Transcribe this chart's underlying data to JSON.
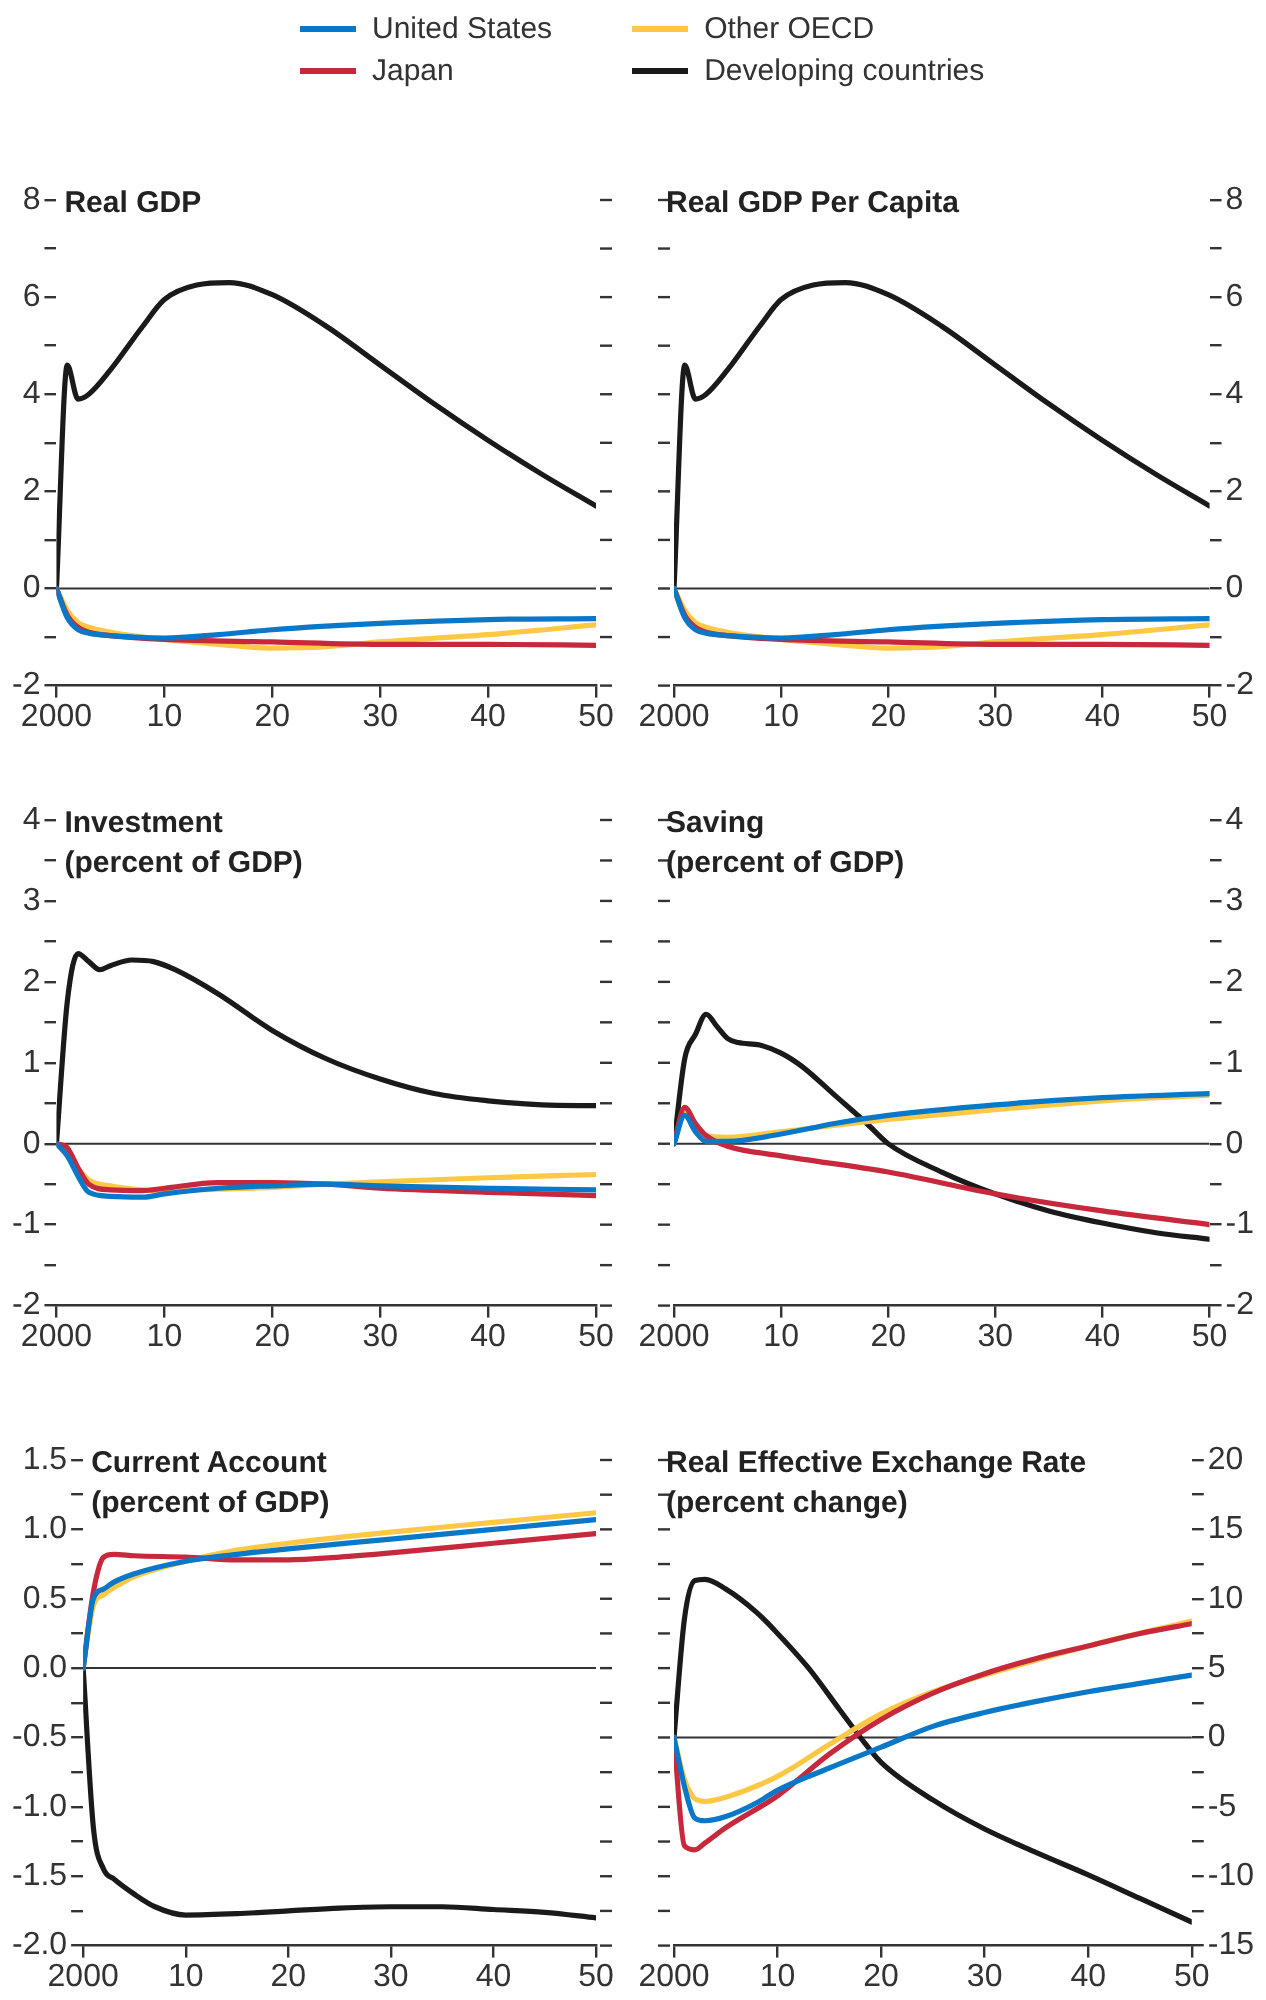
{
  "chart_data": [
    {
      "type": "line",
      "title": "Real GDP",
      "legend": "top",
      "xlim": [
        2000,
        2050
      ],
      "xticks": [
        {
          "value": 2000,
          "label": "2000"
        },
        {
          "value": 2010,
          "label": "10"
        },
        {
          "value": 2020,
          "label": "20"
        },
        {
          "value": 2030,
          "label": "30"
        },
        {
          "value": 2040,
          "label": "40"
        },
        {
          "value": 2050,
          "label": "50"
        }
      ],
      "ylim": [
        -2,
        8
      ],
      "yticks": [
        -2,
        {
          "value": -1,
          "label": null
        },
        0,
        {
          "value": 1,
          "label": null
        },
        2,
        {
          "value": 3,
          "label": null
        },
        4,
        {
          "value": 5,
          "label": null
        },
        6,
        {
          "value": 7,
          "label": null
        },
        8
      ],
      "ref_lines": [
        {
          "axis": "y",
          "value": 0
        }
      ],
      "series": [
        {
          "name": "United States",
          "color": "#0a78c8",
          "x": [
            2000,
            2001,
            2002,
            2003,
            2005,
            2010,
            2015,
            2020,
            2030,
            2040,
            2050
          ],
          "values": [
            0,
            -0.6,
            -0.85,
            -0.92,
            -0.97,
            -1.02,
            -0.95,
            -0.85,
            -0.72,
            -0.64,
            -0.62
          ]
        },
        {
          "name": "Japan",
          "color": "#c8283c",
          "x": [
            2000,
            2001,
            2002,
            2003,
            2005,
            2010,
            2020,
            2030,
            2040,
            2050
          ],
          "values": [
            0,
            -0.55,
            -0.8,
            -0.9,
            -0.97,
            -1.05,
            -1.1,
            -1.15,
            -1.15,
            -1.17
          ]
        },
        {
          "name": "Other OECD",
          "color": "#ffc844",
          "x": [
            2000,
            2001,
            2002,
            2003,
            2005,
            2010,
            2015,
            2020,
            2025,
            2030,
            2040,
            2050
          ],
          "values": [
            0,
            -0.45,
            -0.7,
            -0.8,
            -0.9,
            -1.05,
            -1.15,
            -1.23,
            -1.2,
            -1.1,
            -0.95,
            -0.75
          ]
        },
        {
          "name": "Developing countries",
          "color": "#1a1a1a",
          "x": [
            2000,
            2001,
            2002,
            2003,
            2005,
            2008,
            2010,
            2013,
            2016,
            2020,
            2025,
            2030,
            2035,
            2040,
            2045,
            2050
          ],
          "values": [
            0,
            4.6,
            3.9,
            4.0,
            4.5,
            5.4,
            5.95,
            6.25,
            6.3,
            6.05,
            5.4,
            4.6,
            3.8,
            3.05,
            2.35,
            1.7
          ]
        }
      ]
    },
    {
      "type": "line",
      "title": "Real GDP Per Capita",
      "xlim": [
        2000,
        2050
      ],
      "xticks": [
        {
          "value": 2000,
          "label": "2000"
        },
        {
          "value": 2010,
          "label": "10"
        },
        {
          "value": 2020,
          "label": "20"
        },
        {
          "value": 2030,
          "label": "30"
        },
        {
          "value": 2040,
          "label": "40"
        },
        {
          "value": 2050,
          "label": "50"
        }
      ],
      "y2lim": [
        -2,
        8
      ],
      "y2ticks": [
        -2,
        {
          "value": -1,
          "label": null
        },
        0,
        {
          "value": 1,
          "label": null
        },
        2,
        {
          "value": 3,
          "label": null
        },
        4,
        {
          "value": 5,
          "label": null
        },
        6,
        {
          "value": 7,
          "label": null
        },
        8
      ],
      "ref_lines": [
        {
          "axis": "y2",
          "value": 0
        }
      ],
      "series": [
        {
          "color": "#0a78c8",
          "axis": "y2",
          "x": [
            2000,
            2001,
            2002,
            2003,
            2005,
            2010,
            2015,
            2020,
            2030,
            2040,
            2050
          ],
          "values": [
            0,
            -0.6,
            -0.85,
            -0.92,
            -0.97,
            -1.02,
            -0.95,
            -0.85,
            -0.72,
            -0.64,
            -0.62
          ]
        },
        {
          "color": "#c8283c",
          "axis": "y2",
          "x": [
            2000,
            2001,
            2002,
            2003,
            2005,
            2010,
            2020,
            2030,
            2040,
            2050
          ],
          "values": [
            0,
            -0.55,
            -0.8,
            -0.9,
            -0.97,
            -1.05,
            -1.1,
            -1.15,
            -1.15,
            -1.17
          ]
        },
        {
          "color": "#ffc844",
          "axis": "y2",
          "x": [
            2000,
            2001,
            2002,
            2003,
            2005,
            2010,
            2015,
            2020,
            2025,
            2030,
            2040,
            2050
          ],
          "values": [
            0,
            -0.45,
            -0.7,
            -0.8,
            -0.9,
            -1.05,
            -1.15,
            -1.23,
            -1.2,
            -1.1,
            -0.95,
            -0.75
          ]
        },
        {
          "color": "#1a1a1a",
          "axis": "y2",
          "x": [
            2000,
            2001,
            2002,
            2003,
            2005,
            2008,
            2010,
            2013,
            2016,
            2020,
            2025,
            2030,
            2035,
            2040,
            2045,
            2050
          ],
          "values": [
            0,
            4.6,
            3.9,
            4.0,
            4.5,
            5.4,
            5.95,
            6.25,
            6.3,
            6.05,
            5.4,
            4.6,
            3.8,
            3.05,
            2.35,
            1.7
          ]
        }
      ]
    },
    {
      "type": "line",
      "title": "Investment",
      "subtitle": "(percent of GDP)",
      "xlim": [
        2000,
        2050
      ],
      "xticks": [
        {
          "value": 2000,
          "label": "2000"
        },
        {
          "value": 2010,
          "label": "10"
        },
        {
          "value": 2020,
          "label": "20"
        },
        {
          "value": 2030,
          "label": "30"
        },
        {
          "value": 2040,
          "label": "40"
        },
        {
          "value": 2050,
          "label": "50"
        }
      ],
      "ylim": [
        -2,
        4
      ],
      "yticks": [
        -2,
        {
          "value": -1.5,
          "label": null
        },
        -1,
        {
          "value": -0.5,
          "label": null
        },
        0,
        {
          "value": 0.5,
          "label": null
        },
        1,
        {
          "value": 1.5,
          "label": null
        },
        2,
        {
          "value": 2.5,
          "label": null
        },
        3,
        {
          "value": 3.5,
          "label": null
        },
        4
      ],
      "ref_lines": [
        {
          "axis": "y",
          "value": 0
        }
      ],
      "series": [
        {
          "color": "#0a78c8",
          "x": [
            2000,
            2001,
            2002,
            2003,
            2005,
            2008,
            2010,
            2015,
            2020,
            2025,
            2030,
            2040,
            2050
          ],
          "values": [
            0,
            -0.15,
            -0.4,
            -0.6,
            -0.65,
            -0.66,
            -0.62,
            -0.55,
            -0.52,
            -0.5,
            -0.52,
            -0.55,
            -0.57
          ]
        },
        {
          "color": "#c8283c",
          "x": [
            2000,
            2001,
            2002,
            2003,
            2005,
            2008,
            2010,
            2015,
            2020,
            2025,
            2030,
            2040,
            2050
          ],
          "values": [
            0,
            -0.05,
            -0.3,
            -0.5,
            -0.57,
            -0.58,
            -0.55,
            -0.48,
            -0.48,
            -0.5,
            -0.55,
            -0.6,
            -0.64
          ]
        },
        {
          "color": "#ffc844",
          "x": [
            2000,
            2001,
            2002,
            2003,
            2005,
            2008,
            2010,
            2015,
            2020,
            2025,
            2030,
            2040,
            2050
          ],
          "values": [
            0,
            -0.1,
            -0.3,
            -0.45,
            -0.52,
            -0.57,
            -0.58,
            -0.56,
            -0.54,
            -0.5,
            -0.47,
            -0.42,
            -0.38
          ]
        },
        {
          "color": "#1a1a1a",
          "x": [
            2000,
            2001,
            2002,
            2003,
            2004,
            2005,
            2007,
            2009,
            2011,
            2015,
            2020,
            2025,
            2030,
            2035,
            2040,
            2045,
            2050
          ],
          "values": [
            0,
            1.75,
            2.35,
            2.25,
            2.15,
            2.2,
            2.27,
            2.25,
            2.15,
            1.85,
            1.4,
            1.05,
            0.8,
            0.62,
            0.53,
            0.48,
            0.47
          ]
        }
      ]
    },
    {
      "type": "line",
      "title": "Saving",
      "subtitle": "(percent of GDP)",
      "xlim": [
        2000,
        2050
      ],
      "xticks": [
        {
          "value": 2000,
          "label": "2000"
        },
        {
          "value": 2010,
          "label": "10"
        },
        {
          "value": 2020,
          "label": "20"
        },
        {
          "value": 2030,
          "label": "30"
        },
        {
          "value": 2040,
          "label": "40"
        },
        {
          "value": 2050,
          "label": "50"
        }
      ],
      "y2lim": [
        -2,
        4
      ],
      "y2ticks": [
        -2,
        {
          "value": -1.5,
          "label": null
        },
        -1,
        {
          "value": -0.5,
          "label": null
        },
        0,
        {
          "value": 0.5,
          "label": null
        },
        1,
        {
          "value": 1.5,
          "label": null
        },
        2,
        {
          "value": 2.5,
          "label": null
        },
        3,
        {
          "value": 3.5,
          "label": null
        },
        4
      ],
      "ref_lines": [
        {
          "axis": "y2",
          "value": 0
        }
      ],
      "series": [
        {
          "color": "#0a78c8",
          "axis": "y2",
          "x": [
            2000,
            2001,
            2002,
            2003,
            2005,
            2010,
            2015,
            2020,
            2030,
            2040,
            2050
          ],
          "values": [
            0,
            0.35,
            0.15,
            0.03,
            0.03,
            0.12,
            0.25,
            0.35,
            0.48,
            0.57,
            0.62
          ]
        },
        {
          "color": "#c8283c",
          "axis": "y2",
          "x": [
            2000,
            2001,
            2002,
            2003,
            2005,
            2010,
            2020,
            2030,
            2040,
            2050
          ],
          "values": [
            0,
            0.45,
            0.25,
            0.1,
            -0.03,
            -0.15,
            -0.35,
            -0.62,
            -0.83,
            -1.0
          ]
        },
        {
          "color": "#ffc844",
          "axis": "y2",
          "x": [
            2000,
            2001,
            2002,
            2003,
            2005,
            2010,
            2020,
            2030,
            2040,
            2050
          ],
          "values": [
            0,
            0.4,
            0.2,
            0.1,
            0.08,
            0.15,
            0.3,
            0.42,
            0.53,
            0.6
          ]
        },
        {
          "color": "#1a1a1a",
          "axis": "y2",
          "x": [
            2000,
            2001,
            2002,
            2003,
            2004,
            2005,
            2006,
            2008,
            2010,
            2012,
            2015,
            2018,
            2020,
            2025,
            2030,
            2035,
            2040,
            2045,
            2050
          ],
          "values": [
            0,
            1.05,
            1.35,
            1.6,
            1.45,
            1.3,
            1.25,
            1.22,
            1.12,
            0.95,
            0.6,
            0.25,
            0.0,
            -0.35,
            -0.62,
            -0.83,
            -0.98,
            -1.1,
            -1.18
          ]
        }
      ]
    },
    {
      "type": "line",
      "title": "Current Account",
      "subtitle": "(percent of GDP)",
      "xlim": [
        2000,
        2050
      ],
      "xticks": [
        {
          "value": 2000,
          "label": "2000"
        },
        {
          "value": 2010,
          "label": "10"
        },
        {
          "value": 2020,
          "label": "20"
        },
        {
          "value": 2030,
          "label": "30"
        },
        {
          "value": 2040,
          "label": "40"
        },
        {
          "value": 2050,
          "label": "50"
        }
      ],
      "ylim": [
        -2,
        1.5
      ],
      "yticks": [
        {
          "value": -2,
          "label": "-2.0"
        },
        {
          "value": -1.75,
          "label": null
        },
        {
          "value": -1.5,
          "label": "-1.5"
        },
        {
          "value": -1.25,
          "label": null
        },
        {
          "value": -1,
          "label": "-1.0"
        },
        {
          "value": -0.75,
          "label": null
        },
        {
          "value": -0.5,
          "label": "-0.5"
        },
        {
          "value": -0.25,
          "label": null
        },
        {
          "value": 0,
          "label": "0.0"
        },
        {
          "value": 0.25,
          "label": null
        },
        {
          "value": 0.5,
          "label": "0.5"
        },
        {
          "value": 0.75,
          "label": null
        },
        {
          "value": 1,
          "label": "1.0"
        },
        {
          "value": 1.25,
          "label": null
        },
        {
          "value": 1.5,
          "label": "1.5"
        }
      ],
      "ref_lines": [
        {
          "axis": "y",
          "value": 0
        }
      ],
      "series": [
        {
          "color": "#0a78c8",
          "x": [
            2000,
            2001,
            2002,
            2003,
            2005,
            2010,
            2015,
            2020,
            2030,
            2040,
            2050
          ],
          "values": [
            0,
            0.5,
            0.57,
            0.62,
            0.68,
            0.77,
            0.82,
            0.86,
            0.93,
            1.0,
            1.07
          ]
        },
        {
          "color": "#c8283c",
          "x": [
            2000,
            2001,
            2002,
            2003,
            2005,
            2010,
            2015,
            2020,
            2025,
            2030,
            2040,
            2050
          ],
          "values": [
            0,
            0.55,
            0.8,
            0.82,
            0.81,
            0.8,
            0.78,
            0.78,
            0.8,
            0.83,
            0.9,
            0.97
          ]
        },
        {
          "color": "#ffc844",
          "x": [
            2000,
            2001,
            2002,
            2003,
            2005,
            2010,
            2015,
            2020,
            2030,
            2040,
            2050
          ],
          "values": [
            0,
            0.45,
            0.53,
            0.58,
            0.66,
            0.77,
            0.85,
            0.9,
            0.98,
            1.05,
            1.12
          ]
        },
        {
          "color": "#1a1a1a",
          "x": [
            2000,
            2001,
            2002,
            2003,
            2005,
            2007,
            2010,
            2015,
            2020,
            2025,
            2030,
            2035,
            2040,
            2045,
            2050
          ],
          "values": [
            0,
            -1.15,
            -1.45,
            -1.52,
            -1.63,
            -1.72,
            -1.78,
            -1.77,
            -1.75,
            -1.73,
            -1.72,
            -1.72,
            -1.74,
            -1.76,
            -1.8
          ]
        }
      ]
    },
    {
      "type": "line",
      "title": "Real Effective Exchange Rate",
      "subtitle": "(percent change)",
      "xlim": [
        2000,
        2050
      ],
      "xticks": [
        {
          "value": 2000,
          "label": "2000"
        },
        {
          "value": 2010,
          "label": "10"
        },
        {
          "value": 2020,
          "label": "20"
        },
        {
          "value": 2030,
          "label": "30"
        },
        {
          "value": 2040,
          "label": "40"
        },
        {
          "value": 2050,
          "label": "50"
        }
      ],
      "y2lim": [
        -15,
        20
      ],
      "y2ticks": [
        -15,
        {
          "value": -12.5,
          "label": null
        },
        -10,
        {
          "value": -7.5,
          "label": null
        },
        -5,
        {
          "value": -2.5,
          "label": null
        },
        0,
        {
          "value": 2.5,
          "label": null
        },
        5,
        {
          "value": 7.5,
          "label": null
        },
        10,
        {
          "value": 12.5,
          "label": null
        },
        15,
        {
          "value": 17.5,
          "label": null
        },
        20
      ],
      "ref_lines": [
        {
          "axis": "y2",
          "value": 0
        }
      ],
      "series": [
        {
          "color": "#0a78c8",
          "axis": "y2",
          "x": [
            2000,
            2001,
            2002,
            2003,
            2005,
            2008,
            2010,
            2015,
            2020,
            2025,
            2030,
            2035,
            2040,
            2045,
            2050
          ],
          "values": [
            0,
            -3.5,
            -5.8,
            -6.0,
            -5.7,
            -4.7,
            -3.8,
            -2.2,
            -0.7,
            0.8,
            1.8,
            2.6,
            3.3,
            3.9,
            4.5
          ]
        },
        {
          "color": "#c8283c",
          "axis": "y2",
          "x": [
            2000,
            2001,
            2002,
            2003,
            2005,
            2010,
            2015,
            2020,
            2025,
            2030,
            2035,
            2040,
            2045,
            2050
          ],
          "values": [
            0,
            -7.8,
            -8.1,
            -7.6,
            -6.5,
            -4.2,
            -1.2,
            1.3,
            3.2,
            4.6,
            5.7,
            6.6,
            7.5,
            8.2
          ]
        },
        {
          "color": "#ffc844",
          "axis": "y2",
          "x": [
            2000,
            2001,
            2002,
            2003,
            2005,
            2010,
            2015,
            2020,
            2025,
            2030,
            2040,
            2050
          ],
          "values": [
            0,
            -3.0,
            -4.4,
            -4.6,
            -4.3,
            -2.8,
            -0.5,
            1.7,
            3.3,
            4.5,
            6.6,
            8.4
          ]
        },
        {
          "color": "#1a1a1a",
          "axis": "y2",
          "x": [
            2000,
            2001,
            2002,
            2003,
            2005,
            2008,
            2010,
            2013,
            2016,
            2018,
            2020,
            2025,
            2030,
            2035,
            2040,
            2045,
            2050
          ],
          "values": [
            0,
            8.5,
            11.3,
            11.4,
            10.7,
            9.0,
            7.5,
            5.0,
            2.0,
            0.0,
            -1.8,
            -4.5,
            -6.6,
            -8.3,
            -9.9,
            -11.6,
            -13.3
          ]
        }
      ]
    }
  ]
}
